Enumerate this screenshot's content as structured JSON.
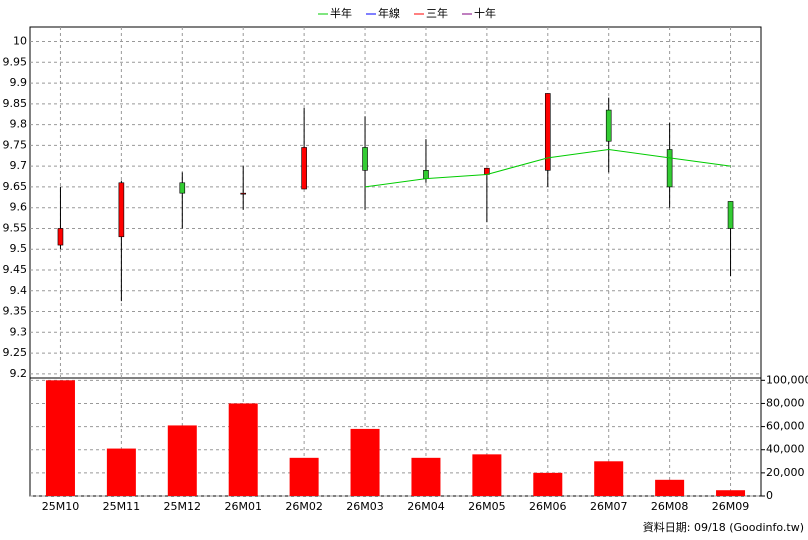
{
  "chart_data": [
    {
      "type": "candlestick",
      "open": [
        9.51,
        9.53,
        9.66,
        9.635,
        9.645,
        9.745,
        9.69,
        9.68,
        9.69,
        9.835,
        9.74,
        9.615
      ],
      "high": [
        9.65,
        9.665,
        9.685,
        9.7,
        9.84,
        9.82,
        9.765,
        9.695,
        9.875,
        9.865,
        9.805,
        9.615
      ],
      "low": [
        9.5,
        9.375,
        9.55,
        9.595,
        9.645,
        9.595,
        9.66,
        9.565,
        9.65,
        9.685,
        9.6,
        9.435
      ],
      "close": [
        9.55,
        9.66,
        9.635,
        9.635,
        9.745,
        9.69,
        9.67,
        9.695,
        9.875,
        9.76,
        9.65,
        9.55
      ],
      "up_color": "#ff0000",
      "down_color": "#33cc33",
      "series": [
        {
          "name": "半年",
          "color": "#00cc00",
          "values": [
            null,
            null,
            null,
            null,
            null,
            9.65,
            9.67,
            9.68,
            9.72,
            9.74,
            9.72,
            9.7
          ]
        },
        {
          "name": "年線",
          "color": "#0000ff",
          "values": [
            null,
            null,
            null,
            null,
            null,
            null,
            null,
            null,
            null,
            null,
            null,
            null
          ]
        },
        {
          "name": "三年",
          "color": "#ff0000",
          "values": [
            null,
            null,
            null,
            null,
            null,
            null,
            null,
            null,
            null,
            null,
            null,
            null
          ]
        },
        {
          "name": "十年",
          "color": "#800080",
          "values": [
            null,
            null,
            null,
            null,
            null,
            null,
            null,
            null,
            null,
            null,
            null,
            null
          ]
        }
      ],
      "ylim": [
        9.19,
        10.035
      ],
      "yticks": [
        9.2,
        9.25,
        9.3,
        9.35,
        9.4,
        9.45,
        9.5,
        9.55,
        9.6,
        9.65,
        9.7,
        9.75,
        9.8,
        9.85,
        9.9,
        9.95,
        10
      ],
      "grid": true
    },
    {
      "type": "bar",
      "categories": [
        "25M10",
        "25M11",
        "25M12",
        "26M01",
        "26M02",
        "26M03",
        "26M04",
        "26M05",
        "26M06",
        "26M07",
        "26M08",
        "26M09"
      ],
      "values": [
        100000,
        41000,
        61000,
        80000,
        33000,
        58000,
        33000,
        36000,
        20000,
        30000,
        14000,
        5000
      ],
      "color": "#ff0000",
      "ylim": [
        0,
        102000
      ],
      "yticks": [
        0,
        {
          "value": 20000,
          "label": "20,000"
        },
        {
          "value": 40000,
          "label": "40,000"
        },
        {
          "value": 60000,
          "label": "60,000"
        },
        {
          "value": 80000,
          "label": "80,000"
        },
        {
          "value": 100000,
          "label": "100,000"
        }
      ],
      "grid": true,
      "footer": "資料日期: 09/18  (Goodinfo.tw)"
    }
  ]
}
